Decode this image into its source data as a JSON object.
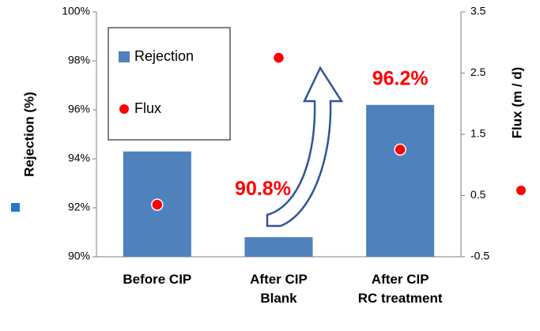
{
  "chart_data": {
    "type": "bar",
    "categories": [
      "Before CIP",
      "After CIP\nBlank",
      "After CIP\nRC treatment"
    ],
    "series": [
      {
        "name": "Rejection",
        "color": "#4f81bd",
        "values": [
          94.3,
          90.8,
          96.2
        ],
        "value_labels": [
          null,
          "90.8%",
          "96.2%"
        ]
      },
      {
        "name": "Flux",
        "color": "#ff0000",
        "axis": "y2",
        "type": "scatter",
        "values": [
          0.35,
          2.75,
          1.25
        ]
      }
    ],
    "ylabel": "Rejection (%)",
    "y2label": "Flux  (m / d)",
    "ylim": [
      90,
      100
    ],
    "yticks": [
      {
        "value": 90,
        "label": "90%"
      },
      {
        "value": 92,
        "label": "92%"
      },
      {
        "value": 94,
        "label": "94%"
      },
      {
        "value": 96,
        "label": "96%"
      },
      {
        "value": 98,
        "label": "98%"
      },
      {
        "value": 100,
        "label": "100%"
      }
    ],
    "y2lim": [
      -0.5,
      3.5
    ],
    "y2ticks": [
      -0.5,
      0.5,
      1.5,
      2.5,
      3.5
    ],
    "grid": false,
    "legend": "upper left"
  }
}
